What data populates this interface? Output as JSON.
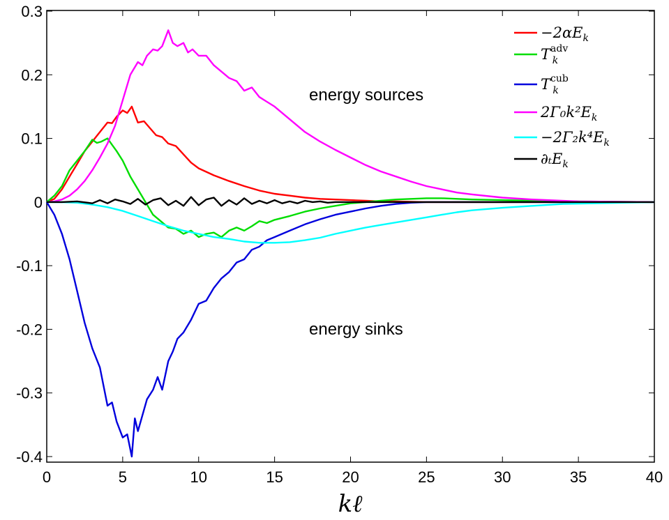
{
  "chart_data": {
    "type": "line",
    "title": "",
    "xlabel": "kℓ",
    "ylabel": "",
    "xlim": [
      0,
      40
    ],
    "ylim": [
      -0.41,
      0.3
    ],
    "xticks": [
      0,
      5,
      10,
      15,
      20,
      25,
      30,
      35,
      40
    ],
    "xtick_labels": [
      "0",
      "5",
      "10",
      "15",
      "20",
      "25",
      "30",
      "35",
      "40"
    ],
    "yticks": [
      -0.4,
      -0.3,
      -0.2,
      -0.1,
      0,
      0.1,
      0.2,
      0.3
    ],
    "ytick_labels": [
      "-0.4",
      "-0.3",
      "-0.2",
      "-0.1",
      "0",
      "0.1",
      "0.2",
      "0.3"
    ],
    "grid": false,
    "legend_position": "top-right",
    "annotations": [
      "energy sources",
      "energy sinks"
    ],
    "series": [
      {
        "name": "−2αE_k",
        "color": "#ff0000",
        "x": [
          0,
          0.5,
          1,
          1.5,
          2,
          2.5,
          3,
          3.5,
          4,
          4.3,
          4.6,
          5,
          5.3,
          5.6,
          6,
          6.4,
          6.8,
          7.2,
          7.6,
          8,
          8.5,
          9,
          9.5,
          10,
          11,
          12,
          13,
          14,
          15,
          16,
          17,
          18,
          19,
          20,
          21,
          22,
          23,
          24,
          25,
          27,
          30,
          35,
          40
        ],
        "y": [
          0,
          0.005,
          0.02,
          0.04,
          0.06,
          0.08,
          0.095,
          0.11,
          0.125,
          0.124,
          0.134,
          0.144,
          0.14,
          0.15,
          0.125,
          0.127,
          0.116,
          0.105,
          0.102,
          0.092,
          0.088,
          0.075,
          0.062,
          0.053,
          0.042,
          0.033,
          0.025,
          0.018,
          0.013,
          0.01,
          0.007,
          0.005,
          0.004,
          0.003,
          0.002,
          0.001,
          0.001,
          0.0005,
          0,
          0,
          0,
          0,
          0
        ]
      },
      {
        "name": "T_k^adv",
        "color": "#00dd00",
        "x": [
          0,
          0.5,
          1,
          1.5,
          2,
          2.5,
          3,
          3.3,
          3.6,
          4,
          4.3,
          4.6,
          5,
          5.5,
          6,
          6.5,
          7,
          7.5,
          8,
          8.5,
          9,
          9.5,
          10,
          10.5,
          11,
          11.5,
          12,
          12.5,
          13,
          13.5,
          14,
          14.5,
          15,
          16,
          17,
          18,
          19,
          20,
          21,
          22,
          23,
          24,
          25,
          26,
          28,
          30,
          35,
          40
        ],
        "y": [
          0,
          0.01,
          0.025,
          0.05,
          0.065,
          0.08,
          0.098,
          0.093,
          0.095,
          0.1,
          0.09,
          0.08,
          0.065,
          0.04,
          0.02,
          0,
          -0.02,
          -0.03,
          -0.04,
          -0.042,
          -0.05,
          -0.045,
          -0.055,
          -0.05,
          -0.048,
          -0.055,
          -0.045,
          -0.04,
          -0.045,
          -0.038,
          -0.03,
          -0.033,
          -0.028,
          -0.022,
          -0.015,
          -0.01,
          -0.006,
          -0.002,
          0,
          0.002,
          0.004,
          0.005,
          0.006,
          0.006,
          0.004,
          0.003,
          0.001,
          0
        ]
      },
      {
        "name": "T_k^cub",
        "color": "#0000dd",
        "x": [
          0,
          0.5,
          1,
          1.5,
          2,
          2.5,
          3,
          3.5,
          4,
          4.3,
          4.6,
          5,
          5.3,
          5.6,
          5.8,
          6,
          6.3,
          6.6,
          7,
          7.3,
          7.6,
          8,
          8.3,
          8.6,
          9,
          9.5,
          10,
          10.5,
          11,
          11.5,
          12,
          12.5,
          13,
          13.5,
          14,
          14.5,
          15,
          16,
          17,
          18,
          19,
          20,
          21,
          22,
          23,
          24,
          25,
          27,
          30,
          35,
          40
        ],
        "y": [
          0,
          -0.02,
          -0.05,
          -0.09,
          -0.14,
          -0.19,
          -0.23,
          -0.26,
          -0.32,
          -0.315,
          -0.345,
          -0.37,
          -0.365,
          -0.4,
          -0.34,
          -0.36,
          -0.335,
          -0.31,
          -0.295,
          -0.275,
          -0.295,
          -0.25,
          -0.235,
          -0.215,
          -0.205,
          -0.185,
          -0.16,
          -0.155,
          -0.135,
          -0.12,
          -0.11,
          -0.095,
          -0.09,
          -0.075,
          -0.07,
          -0.06,
          -0.055,
          -0.045,
          -0.035,
          -0.027,
          -0.02,
          -0.015,
          -0.01,
          -0.006,
          -0.003,
          -0.001,
          0,
          0,
          0,
          0,
          0
        ]
      },
      {
        "name": "2Γ₀k²E_k",
        "color": "#ff00ff",
        "x": [
          0,
          0.5,
          1,
          1.5,
          2,
          2.5,
          3,
          3.5,
          4,
          4.5,
          5,
          5.5,
          6,
          6.3,
          6.6,
          7,
          7.3,
          7.6,
          8,
          8.3,
          8.6,
          9,
          9.3,
          9.6,
          10,
          10.5,
          11,
          11.5,
          12,
          12.5,
          13,
          13.5,
          14,
          15,
          16,
          17,
          18,
          19,
          20,
          21,
          22,
          23,
          24,
          25,
          26,
          27,
          28,
          30,
          32,
          35,
          40
        ],
        "y": [
          0,
          0.001,
          0.004,
          0.01,
          0.02,
          0.033,
          0.05,
          0.07,
          0.092,
          0.12,
          0.16,
          0.2,
          0.22,
          0.215,
          0.23,
          0.24,
          0.238,
          0.245,
          0.27,
          0.25,
          0.245,
          0.25,
          0.235,
          0.24,
          0.23,
          0.23,
          0.215,
          0.205,
          0.195,
          0.19,
          0.175,
          0.18,
          0.165,
          0.15,
          0.13,
          0.11,
          0.095,
          0.082,
          0.07,
          0.058,
          0.048,
          0.04,
          0.032,
          0.025,
          0.02,
          0.015,
          0.012,
          0.007,
          0.004,
          0.001,
          0
        ]
      },
      {
        "name": "−2Γ₂k⁴E_k",
        "color": "#00ffff",
        "x": [
          0,
          1,
          2,
          3,
          4,
          5,
          6,
          7,
          8,
          9,
          10,
          11,
          12,
          13,
          14,
          15,
          16,
          17,
          18,
          19,
          20,
          21,
          22,
          23,
          24,
          25,
          26,
          27,
          28,
          30,
          32,
          34,
          36,
          38,
          40
        ],
        "y": [
          0,
          -0.0002,
          -0.001,
          -0.004,
          -0.008,
          -0.014,
          -0.022,
          -0.03,
          -0.038,
          -0.045,
          -0.05,
          -0.055,
          -0.058,
          -0.062,
          -0.064,
          -0.064,
          -0.063,
          -0.06,
          -0.056,
          -0.05,
          -0.045,
          -0.04,
          -0.036,
          -0.032,
          -0.028,
          -0.024,
          -0.02,
          -0.016,
          -0.013,
          -0.009,
          -0.006,
          -0.003,
          -0.002,
          -0.001,
          0
        ]
      },
      {
        "name": "∂_tE_k",
        "color": "#000000",
        "x": [
          0,
          1,
          2,
          3,
          3.5,
          4,
          4.5,
          5,
          5.5,
          6,
          6.5,
          7,
          7.5,
          8,
          8.5,
          9,
          9.5,
          10,
          10.5,
          11,
          11.5,
          12,
          12.5,
          13,
          13.5,
          14,
          14.5,
          15,
          15.5,
          16,
          16.5,
          17,
          17.5,
          18,
          18.5,
          19,
          20,
          22,
          25,
          30,
          35,
          40
        ],
        "y": [
          0,
          0,
          0.001,
          -0.002,
          0.003,
          -0.002,
          0.004,
          0.001,
          -0.003,
          0.005,
          -0.004,
          0.003,
          0.006,
          -0.005,
          0.002,
          -0.006,
          0.008,
          -0.005,
          0.004,
          0.007,
          -0.006,
          0.003,
          -0.004,
          0.006,
          -0.003,
          0.002,
          -0.002,
          0.003,
          -0.002,
          0.001,
          -0.002,
          0.002,
          0,
          0.001,
          -0.001,
          0,
          0,
          0,
          0,
          0,
          0,
          0
        ]
      }
    ]
  },
  "legend_labels": [
    {
      "base": "−2αE",
      "sub": "k",
      "sup": ""
    },
    {
      "base": "T",
      "sub": "k",
      "sup": "adv"
    },
    {
      "base": "T",
      "sub": "k",
      "sup": "cub"
    },
    {
      "base": "2Γ₀k²E",
      "sub": "k",
      "sup": ""
    },
    {
      "base": "−2Γ₂k⁴E",
      "sub": "k",
      "sup": ""
    },
    {
      "base": "∂ₜE",
      "sub": "k",
      "sup": ""
    }
  ]
}
